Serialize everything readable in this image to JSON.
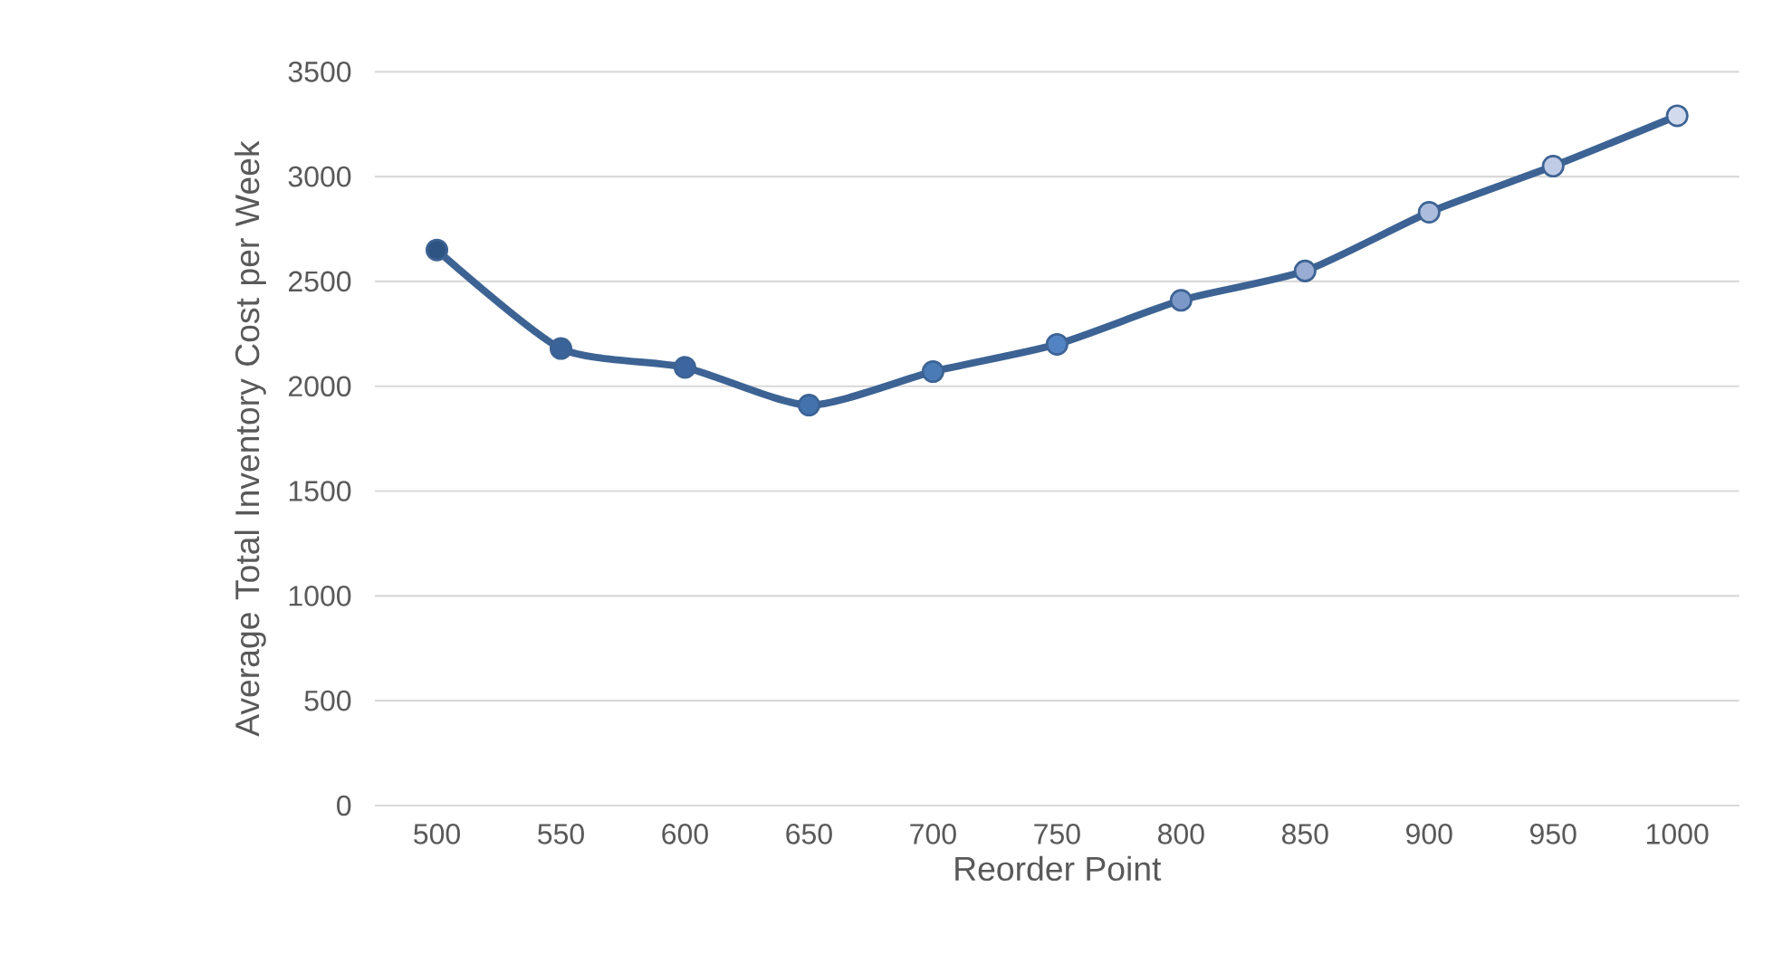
{
  "chart_data": {
    "type": "line",
    "xlabel": "Reorder Point",
    "ylabel": "Average Total Inventory Cost per Week",
    "categories": [
      "500",
      "550",
      "600",
      "650",
      "700",
      "750",
      "800",
      "850",
      "900",
      "950",
      "1000"
    ],
    "series": [
      {
        "color": "#3d6394",
        "values": [
          2650,
          2180,
          2090,
          1910,
          2070,
          2200,
          2410,
          2550,
          2830,
          3050,
          3290
        ],
        "colors": [
          "#2e5484",
          "#3a6399",
          "#3d66a0",
          "#4372ad",
          "#4a7bb7",
          "#5283c2",
          "#7b98c8",
          "#98acd4",
          "#acbcdd",
          "#c0cbe6",
          "#d2dbee"
        ]
      }
    ],
    "ylim": [
      0,
      3500
    ],
    "yticks": [
      0,
      500,
      1000,
      1500,
      2000,
      2500,
      3000,
      3500
    ],
    "grid": "y",
    "marker": "circle",
    "line_style": "solid"
  }
}
